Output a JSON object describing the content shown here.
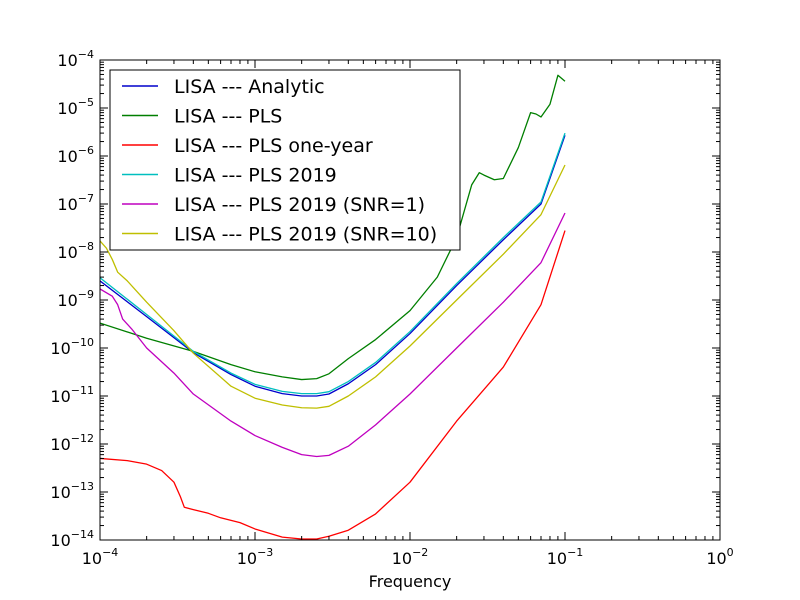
{
  "chart_data": {
    "type": "line",
    "title": "",
    "xlabel": "Frequency",
    "ylabel": "",
    "xscale": "log",
    "yscale": "log",
    "xlim": [
      0.0001,
      1
    ],
    "ylim": [
      1e-14,
      0.0001
    ],
    "x_ticks": [
      {
        "base": "10",
        "exp": "−4"
      },
      {
        "base": "10",
        "exp": "−3"
      },
      {
        "base": "10",
        "exp": "−2"
      },
      {
        "base": "10",
        "exp": "−1"
      },
      {
        "base": "10",
        "exp": "0"
      }
    ],
    "y_ticks": [
      {
        "base": "10",
        "exp": "−14"
      },
      {
        "base": "10",
        "exp": "−13"
      },
      {
        "base": "10",
        "exp": "−12"
      },
      {
        "base": "10",
        "exp": "−11"
      },
      {
        "base": "10",
        "exp": "−10"
      },
      {
        "base": "10",
        "exp": "−9"
      },
      {
        "base": "10",
        "exp": "−8"
      },
      {
        "base": "10",
        "exp": "−7"
      },
      {
        "base": "10",
        "exp": "−6"
      },
      {
        "base": "10",
        "exp": "−5"
      },
      {
        "base": "10",
        "exp": "−4"
      }
    ],
    "grid": false,
    "legend_position": "top-left",
    "series": [
      {
        "name": "LISA --- Analytic",
        "color": "#0000cc",
        "x": [
          0.0001,
          0.0002,
          0.0004,
          0.0007,
          0.001,
          0.0015,
          0.002,
          0.0025,
          0.003,
          0.004,
          0.006,
          0.01,
          0.02,
          0.04,
          0.07,
          0.1
        ],
        "y": [
          2.5e-09,
          4.5e-10,
          8e-11,
          2.8e-11,
          1.6e-11,
          1.12e-11,
          1e-11,
          1e-11,
          1.1e-11,
          1.8e-11,
          4.5e-11,
          2e-10,
          2e-09,
          1.8e-08,
          1e-07,
          2.7e-06
        ]
      },
      {
        "name": "LISA --- PLS",
        "color": "#007f00",
        "x": [
          0.0001,
          0.0002,
          0.0004,
          0.0007,
          0.001,
          0.0015,
          0.002,
          0.0025,
          0.003,
          0.004,
          0.006,
          0.01,
          0.015,
          0.02,
          0.025,
          0.028,
          0.03,
          0.035,
          0.04,
          0.05,
          0.06,
          0.065,
          0.07,
          0.08,
          0.09,
          0.1
        ],
        "y": [
          3.3e-10,
          1.6e-10,
          8.5e-11,
          4.5e-11,
          3.2e-11,
          2.5e-11,
          2.2e-11,
          2.3e-11,
          2.9e-11,
          6e-11,
          1.5e-10,
          6e-10,
          3e-09,
          2e-08,
          2.5e-07,
          4.5e-07,
          4e-07,
          3.2e-07,
          3.4e-07,
          1.5e-06,
          8e-06,
          7.5e-06,
          6.5e-06,
          1.2e-05,
          4.8e-05,
          3.6e-05
        ]
      },
      {
        "name": "LISA --- PLS one-year",
        "color": "#ff0000",
        "x": [
          0.0001,
          0.00015,
          0.0002,
          0.00025,
          0.0003,
          0.00033,
          0.00035,
          0.0004,
          0.0005,
          0.0006,
          0.0008,
          0.001,
          0.0015,
          0.002,
          0.0025,
          0.003,
          0.004,
          0.006,
          0.01,
          0.02,
          0.04,
          0.07,
          0.1
        ],
        "y": [
          5e-13,
          4.5e-13,
          3.8e-13,
          2.8e-13,
          1.6e-13,
          8e-14,
          4.8e-14,
          4.3e-14,
          3.6e-14,
          2.9e-14,
          2.3e-14,
          1.7e-14,
          1.15e-14,
          1.05e-14,
          1.05e-14,
          1.2e-14,
          1.6e-14,
          3.5e-14,
          1.6e-13,
          3e-12,
          4e-11,
          8e-10,
          2.8e-08
        ]
      },
      {
        "name": "LISA --- PLS 2019",
        "color": "#00bfbf",
        "x": [
          0.0001,
          0.0002,
          0.0004,
          0.0007,
          0.001,
          0.0015,
          0.002,
          0.0025,
          0.003,
          0.004,
          0.006,
          0.01,
          0.02,
          0.04,
          0.07,
          0.1
        ],
        "y": [
          2.9e-09,
          5e-10,
          8.5e-11,
          3e-11,
          1.75e-11,
          1.25e-11,
          1.12e-11,
          1.12e-11,
          1.23e-11,
          2e-11,
          5e-11,
          2.2e-10,
          2.2e-09,
          2e-08,
          1.1e-07,
          3e-06
        ]
      },
      {
        "name": "LISA --- PLS 2019 (SNR=1)",
        "color": "#bf00bf",
        "x": [
          0.0001,
          0.00012,
          0.00013,
          0.00014,
          0.00016,
          0.0002,
          0.0003,
          0.0004,
          0.0007,
          0.001,
          0.0015,
          0.002,
          0.0025,
          0.003,
          0.004,
          0.006,
          0.01,
          0.02,
          0.04,
          0.07,
          0.1
        ],
        "y": [
          1.7e-09,
          1.2e-09,
          8e-10,
          4e-10,
          2.5e-10,
          1e-10,
          3e-11,
          1.1e-11,
          3e-12,
          1.5e-12,
          8.5e-13,
          6e-13,
          5.5e-13,
          5.8e-13,
          9e-13,
          2.5e-12,
          1.1e-11,
          1e-10,
          9e-10,
          6e-09,
          6.5e-08
        ]
      },
      {
        "name": "LISA --- PLS 2019 (SNR=10)",
        "color": "#bfbf00",
        "x": [
          0.0001,
          0.00011,
          0.00012,
          0.00013,
          0.00015,
          0.00017,
          0.0002,
          0.0003,
          0.0004,
          0.0007,
          0.001,
          0.0015,
          0.002,
          0.0025,
          0.003,
          0.004,
          0.006,
          0.01,
          0.02,
          0.04,
          0.07,
          0.1
        ],
        "y": [
          1.7e-08,
          1.2e-08,
          7e-09,
          3.8e-09,
          2.5e-09,
          1.6e-09,
          9e-10,
          2.3e-10,
          7.8e-11,
          1.6e-11,
          9e-12,
          6.5e-12,
          5.7e-12,
          5.6e-12,
          6.1e-12,
          1e-11,
          2.5e-11,
          1.1e-10,
          1e-09,
          9e-09,
          6e-08,
          6.5e-07
        ]
      }
    ]
  }
}
